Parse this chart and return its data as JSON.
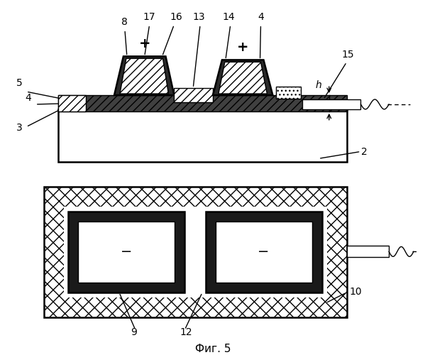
{
  "title": "Фиг. 5",
  "bg_color": "#ffffff",
  "line_color": "#000000"
}
